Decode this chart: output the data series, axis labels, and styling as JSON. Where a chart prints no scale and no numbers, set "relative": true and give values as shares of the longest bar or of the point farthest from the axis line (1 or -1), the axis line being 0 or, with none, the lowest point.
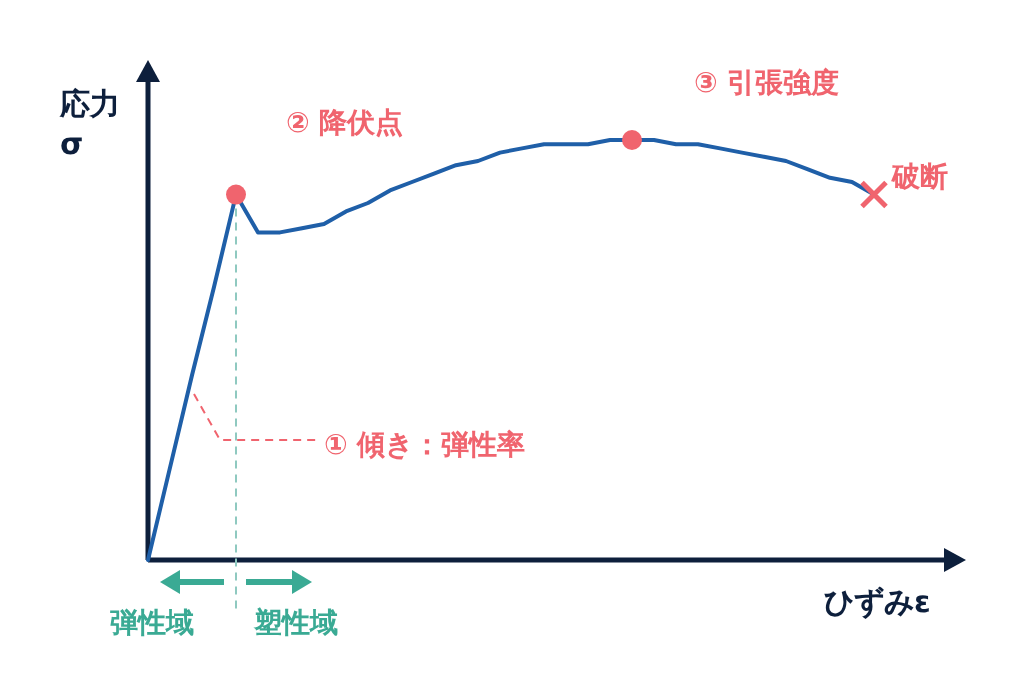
{
  "chart_data": {
    "type": "line",
    "relative": true,
    "xlabel": "ひずみε",
    "ylabel": "応力\nσ",
    "grid": false,
    "legend": false,
    "marker": "none",
    "categories": [
      null,
      null,
      null,
      null,
      null,
      null,
      null,
      null,
      null,
      null,
      null,
      null,
      null,
      null,
      null,
      null,
      null,
      null,
      null,
      null,
      null,
      null,
      null,
      null,
      null,
      null,
      null,
      null,
      null,
      null,
      null,
      null,
      null,
      null
    ],
    "series": [
      {
        "color": "#1f5fa8",
        "values": [
          0,
          0.22,
          0.44,
          0.65,
          0.87,
          0.78,
          0.78,
          0.79,
          0.8,
          0.83,
          0.85,
          0.88,
          0.9,
          0.92,
          0.94,
          0.95,
          0.97,
          0.98,
          0.99,
          0.99,
          0.99,
          1,
          1,
          1,
          0.99,
          0.99,
          0.98,
          0.97,
          0.96,
          0.95,
          0.93,
          0.91,
          0.9,
          0.87
        ]
      }
    ],
    "annotations": [
      "① 傾き：弾性率",
      "② 降伏点",
      "③ 引張強度",
      "破断",
      "弾性域",
      "塑性域"
    ]
  }
}
